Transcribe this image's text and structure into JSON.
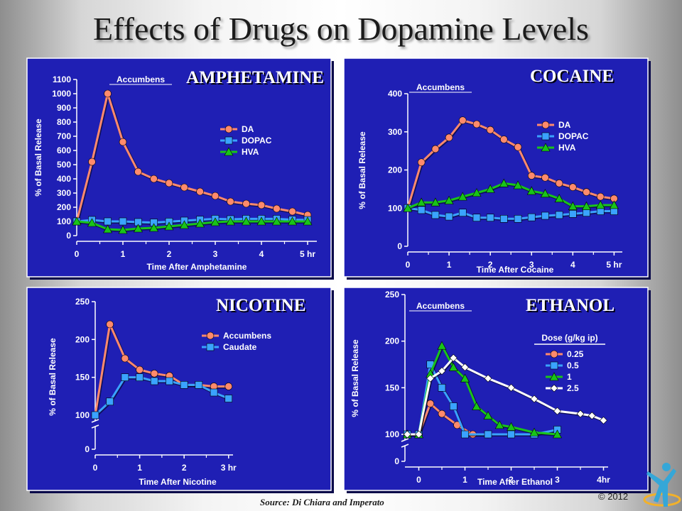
{
  "page": {
    "title": "Effects of Drugs on Dopamine Levels",
    "source": "Source: Di Chiara and Imperato",
    "copyright": "© 2012"
  },
  "colors": {
    "panel_bg": "#1f1fb4",
    "series_salmon": "#ff8a6c",
    "series_blue": "#3aa3ff",
    "series_green": "#19c419",
    "series_white": "#ffffff"
  },
  "icons": {
    "logo": "person-figure-icon"
  },
  "panels": {
    "amphetamine": {
      "title": "AMPHETAMINE"
    },
    "cocaine": {
      "title": "COCAINE"
    },
    "nicotine": {
      "title": "NICOTINE"
    },
    "ethanol": {
      "title": "ETHANOL"
    }
  },
  "chart_data": [
    {
      "id": "amphetamine",
      "type": "line",
      "title": "AMPHETAMINE",
      "annotation": "Accumbens",
      "xlabel": "Time After Amphetamine",
      "ylabel": "% of Basal Release",
      "x_ticks": [
        0,
        1,
        2,
        3,
        4,
        5
      ],
      "x_tick_labels": [
        "0",
        "1",
        "2",
        "3",
        "4",
        "5 hr"
      ],
      "y_ticks": [
        0,
        100,
        200,
        300,
        400,
        500,
        600,
        700,
        800,
        900,
        1000,
        1100
      ],
      "xlim": [
        0,
        5.2
      ],
      "ylim": [
        0,
        1100
      ],
      "legend_title": "",
      "legend_position": "right",
      "series": [
        {
          "name": "DA",
          "marker": "circle",
          "color": "#ff8a6c",
          "x": [
            0,
            0.33,
            0.67,
            1,
            1.33,
            1.67,
            2,
            2.33,
            2.67,
            3,
            3.33,
            3.67,
            4,
            4.33,
            4.67,
            5
          ],
          "y": [
            100,
            520,
            1000,
            660,
            450,
            400,
            370,
            340,
            310,
            280,
            240,
            225,
            215,
            190,
            170,
            145
          ]
        },
        {
          "name": "DOPAC",
          "marker": "square",
          "color": "#3aa3ff",
          "x": [
            0,
            0.33,
            0.67,
            1,
            1.33,
            1.67,
            2,
            2.33,
            2.67,
            3,
            3.33,
            3.67,
            4,
            4.33,
            4.67,
            5
          ],
          "y": [
            100,
            110,
            100,
            100,
            95,
            92,
            98,
            105,
            112,
            118,
            115,
            118,
            118,
            118,
            112,
            110
          ]
        },
        {
          "name": "HVA",
          "marker": "triangle",
          "color": "#19c419",
          "x": [
            0,
            0.33,
            0.67,
            1,
            1.33,
            1.67,
            2,
            2.33,
            2.67,
            3,
            3.33,
            3.67,
            4,
            4.33,
            4.67,
            5
          ],
          "y": [
            100,
            90,
            45,
            40,
            50,
            55,
            65,
            75,
            85,
            95,
            100,
            100,
            100,
            100,
            100,
            100
          ]
        }
      ]
    },
    {
      "id": "cocaine",
      "type": "line",
      "title": "COCAINE",
      "annotation": "Accumbens",
      "xlabel": "Time After Cocaine",
      "ylabel": "% of Basal Release",
      "x_ticks": [
        0,
        1,
        2,
        3,
        4,
        5
      ],
      "x_tick_labels": [
        "0",
        "1",
        "2",
        "3",
        "4",
        "5 hr"
      ],
      "y_ticks": [
        0,
        100,
        200,
        300,
        400
      ],
      "xlim": [
        0,
        5.2
      ],
      "ylim": [
        0,
        400
      ],
      "legend_title": "",
      "legend_position": "right",
      "series": [
        {
          "name": "DA",
          "marker": "circle",
          "color": "#ff8a6c",
          "x": [
            0,
            0.33,
            0.67,
            1,
            1.33,
            1.67,
            2,
            2.33,
            2.67,
            3,
            3.33,
            3.67,
            4,
            4.33,
            4.67,
            5
          ],
          "y": [
            100,
            220,
            255,
            285,
            330,
            320,
            305,
            280,
            260,
            185,
            180,
            165,
            155,
            142,
            130,
            125
          ]
        },
        {
          "name": "DOPAC",
          "marker": "square",
          "color": "#3aa3ff",
          "x": [
            0,
            0.33,
            0.67,
            1,
            1.33,
            1.67,
            2,
            2.33,
            2.67,
            3,
            3.33,
            3.67,
            4,
            4.33,
            4.67,
            5
          ],
          "y": [
            100,
            95,
            82,
            78,
            88,
            75,
            75,
            72,
            72,
            76,
            80,
            82,
            85,
            88,
            92,
            92
          ]
        },
        {
          "name": "HVA",
          "marker": "triangle",
          "color": "#19c419",
          "x": [
            0,
            0.33,
            0.67,
            1,
            1.33,
            1.67,
            2,
            2.33,
            2.67,
            3,
            3.33,
            3.67,
            4,
            4.33,
            4.67,
            5
          ],
          "y": [
            100,
            115,
            115,
            120,
            130,
            140,
            150,
            165,
            160,
            145,
            138,
            125,
            105,
            105,
            108,
            108
          ]
        }
      ]
    },
    {
      "id": "nicotine",
      "type": "line",
      "title": "NICOTINE",
      "xlabel": "Time After Nicotine",
      "ylabel": "% of Basal Release",
      "x_ticks": [
        0,
        1,
        2,
        3
      ],
      "x_tick_labels": [
        "0",
        "1",
        "2",
        "3 hr"
      ],
      "y_ticks": [
        0,
        100,
        150,
        200,
        250
      ],
      "y_axis_break": true,
      "xlim": [
        0,
        3.1
      ],
      "ylim": [
        0,
        250
      ],
      "legend_title": "",
      "legend_position": "right",
      "series": [
        {
          "name": "Accumbens",
          "marker": "circle",
          "color": "#ff8a6c",
          "x": [
            0,
            0.33,
            0.67,
            1,
            1.33,
            1.67,
            2,
            2.33,
            2.67,
            3
          ],
          "y": [
            100,
            220,
            175,
            160,
            155,
            152,
            140,
            140,
            138,
            138
          ]
        },
        {
          "name": "Caudate",
          "marker": "square",
          "color": "#3aa3ff",
          "x": [
            0,
            0.33,
            0.67,
            1,
            1.33,
            1.67,
            2,
            2.33,
            2.67,
            3
          ],
          "y": [
            100,
            118,
            150,
            150,
            145,
            145,
            140,
            140,
            130,
            122
          ]
        }
      ]
    },
    {
      "id": "ethanol",
      "type": "line",
      "title": "ETHANOL",
      "annotation": "Accumbens",
      "xlabel": "Time After Ethanol",
      "ylabel": "% of Basal Release",
      "x_ticks": [
        0,
        1,
        2,
        3,
        4
      ],
      "x_tick_labels": [
        "0",
        "1",
        "2",
        "3",
        "4hr"
      ],
      "y_ticks": [
        0,
        100,
        150,
        200,
        250
      ],
      "y_axis_break": true,
      "xlim": [
        -0.3,
        4.1
      ],
      "ylim": [
        0,
        250
      ],
      "legend_title": "Dose (g/kg ip)",
      "legend_position": "right",
      "series": [
        {
          "name": "0.25",
          "marker": "circle",
          "color": "#ff8a6c",
          "x": [
            -0.25,
            0,
            0.25,
            0.5,
            0.83,
            1.17,
            1.5
          ],
          "y": [
            100,
            100,
            133,
            122,
            110,
            100,
            100
          ]
        },
        {
          "name": "0.5",
          "marker": "square",
          "color": "#3aa3ff",
          "x": [
            -0.25,
            0,
            0.25,
            0.5,
            0.75,
            1,
            1.5,
            2,
            2.5,
            3
          ],
          "y": [
            100,
            100,
            175,
            150,
            130,
            100,
            100,
            100,
            100,
            105
          ]
        },
        {
          "name": "1",
          "marker": "triangle",
          "color": "#19c419",
          "x": [
            -0.25,
            0,
            0.25,
            0.5,
            0.75,
            1,
            1.25,
            1.5,
            1.75,
            2,
            2.5,
            3
          ],
          "y": [
            100,
            100,
            165,
            195,
            172,
            160,
            130,
            120,
            110,
            108,
            102,
            100
          ]
        },
        {
          "name": "2.5",
          "marker": "diamond",
          "color": "#ffffff",
          "x": [
            -0.25,
            0,
            0.25,
            0.5,
            0.75,
            1,
            1.5,
            2,
            2.5,
            3,
            3.5,
            3.75,
            4
          ],
          "y": [
            100,
            100,
            160,
            168,
            182,
            172,
            160,
            150,
            138,
            125,
            122,
            120,
            115
          ]
        }
      ]
    }
  ]
}
